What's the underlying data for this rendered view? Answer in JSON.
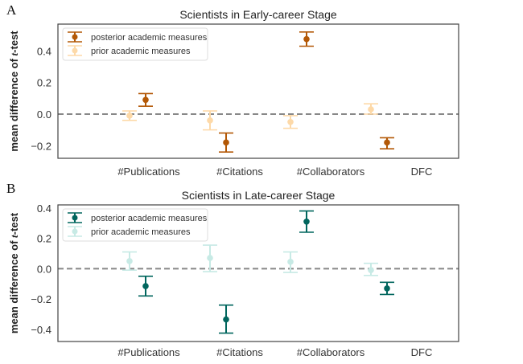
{
  "chart_data": [
    {
      "type": "errorbar",
      "panel_label": "A",
      "title": "Scientists in Early-career Stage",
      "xlabel": "",
      "ylabel_prefix": "mean difference of ",
      "ylabel_italic": "t",
      "ylabel_suffix": "-test",
      "categories": [
        "#Publications",
        "#Citations",
        "#Collaborators",
        "DFC"
      ],
      "ylim": [
        -0.28,
        0.57
      ],
      "yticks": [
        -0.2,
        0.0,
        0.2,
        0.4
      ],
      "ytick_labels": [
        "−0.2",
        "0.0",
        "0.2",
        "0.4"
      ],
      "reference_line": 0.0,
      "legend_position": "upper-left",
      "series": [
        {
          "name": "posterior academic measures",
          "color": "#b35806",
          "values": [
            0.09,
            -0.18,
            0.475,
            -0.18
          ],
          "lower": [
            0.05,
            -0.24,
            0.43,
            -0.22
          ],
          "upper": [
            0.13,
            -0.12,
            0.52,
            -0.15
          ]
        },
        {
          "name": "prior academic measures",
          "color": "#fdd9a8",
          "values": [
            -0.01,
            -0.04,
            -0.05,
            0.03
          ],
          "lower": [
            -0.04,
            -0.1,
            -0.09,
            0.0
          ],
          "upper": [
            0.02,
            0.02,
            -0.01,
            0.065
          ]
        }
      ]
    },
    {
      "type": "errorbar",
      "panel_label": "B",
      "title": "Scientists in Late-career Stage",
      "xlabel": "",
      "ylabel_prefix": "mean difference of ",
      "ylabel_italic": "t",
      "ylabel_suffix": "-test",
      "categories": [
        "#Publications",
        "#Citations",
        "#Collaborators",
        "DFC"
      ],
      "ylim": [
        -0.48,
        0.42
      ],
      "yticks": [
        -0.4,
        -0.2,
        0.0,
        0.2,
        0.4
      ],
      "ytick_labels": [
        "−0.4",
        "−0.2",
        "0.0",
        "0.2",
        "0.4"
      ],
      "reference_line": 0.0,
      "legend_position": "upper-left",
      "series": [
        {
          "name": "posterior academic measures",
          "color": "#01665e",
          "values": [
            -0.115,
            -0.335,
            0.31,
            -0.13
          ],
          "lower": [
            -0.18,
            -0.425,
            0.24,
            -0.17
          ],
          "upper": [
            -0.05,
            -0.24,
            0.38,
            -0.09
          ]
        },
        {
          "name": "prior academic measures",
          "color": "#c7eae5",
          "values": [
            0.05,
            0.07,
            0.045,
            -0.01
          ],
          "lower": [
            -0.01,
            -0.02,
            -0.025,
            -0.045
          ],
          "upper": [
            0.11,
            0.155,
            0.11,
            0.035
          ]
        }
      ]
    }
  ]
}
